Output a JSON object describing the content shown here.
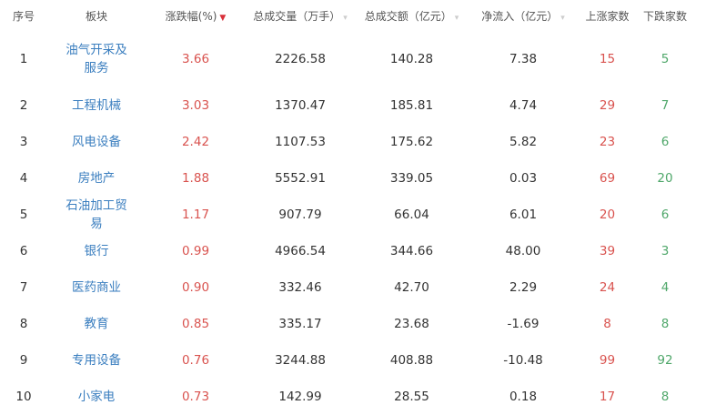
{
  "colors": {
    "up": "#d9534f",
    "down": "#4fa76a",
    "link": "#3a7ebf",
    "sort_active": "#d9303a"
  },
  "headers": [
    {
      "label": "序号",
      "sort": null
    },
    {
      "label": "板块",
      "sort": null
    },
    {
      "label": "涨跌幅(%)",
      "sort": "desc-active"
    },
    {
      "label": "总成交量（万手）",
      "sort": "inactive"
    },
    {
      "label": "总成交额（亿元）",
      "sort": "inactive"
    },
    {
      "label": "净流入（亿元）",
      "sort": "inactive"
    },
    {
      "label": "上涨家数",
      "sort": null
    },
    {
      "label": "下跌家数",
      "sort": null
    }
  ],
  "rows": [
    {
      "rank": "1",
      "sector": "油气开采及服务",
      "change": "3.66",
      "volume": "2226.58",
      "amount": "140.28",
      "inflow": "7.38",
      "up": "15",
      "down": "5"
    },
    {
      "rank": "2",
      "sector": "工程机械",
      "change": "3.03",
      "volume": "1370.47",
      "amount": "185.81",
      "inflow": "4.74",
      "up": "29",
      "down": "7"
    },
    {
      "rank": "3",
      "sector": "风电设备",
      "change": "2.42",
      "volume": "1107.53",
      "amount": "175.62",
      "inflow": "5.82",
      "up": "23",
      "down": "6"
    },
    {
      "rank": "4",
      "sector": "房地产",
      "change": "1.88",
      "volume": "5552.91",
      "amount": "339.05",
      "inflow": "0.03",
      "up": "69",
      "down": "20"
    },
    {
      "rank": "5",
      "sector": "石油加工贸易",
      "change": "1.17",
      "volume": "907.79",
      "amount": "66.04",
      "inflow": "6.01",
      "up": "20",
      "down": "6"
    },
    {
      "rank": "6",
      "sector": "银行",
      "change": "0.99",
      "volume": "4966.54",
      "amount": "344.66",
      "inflow": "48.00",
      "up": "39",
      "down": "3"
    },
    {
      "rank": "7",
      "sector": "医药商业",
      "change": "0.90",
      "volume": "332.46",
      "amount": "42.70",
      "inflow": "2.29",
      "up": "24",
      "down": "4"
    },
    {
      "rank": "8",
      "sector": "教育",
      "change": "0.85",
      "volume": "335.17",
      "amount": "23.68",
      "inflow": "-1.69",
      "up": "8",
      "down": "8"
    },
    {
      "rank": "9",
      "sector": "专用设备",
      "change": "0.76",
      "volume": "3244.88",
      "amount": "408.88",
      "inflow": "-10.48",
      "up": "99",
      "down": "92"
    },
    {
      "rank": "10",
      "sector": "小家电",
      "change": "0.73",
      "volume": "142.99",
      "amount": "28.55",
      "inflow": "0.18",
      "up": "17",
      "down": "8"
    }
  ]
}
